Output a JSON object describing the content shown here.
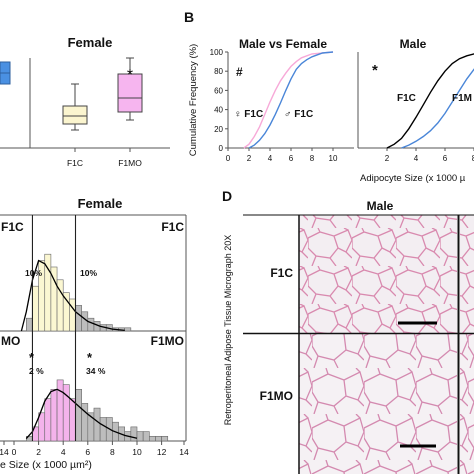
{
  "chart_data": [
    {
      "panel": "",
      "type": "box",
      "title": "Female",
      "categories": [
        "F1C",
        "F1MO"
      ],
      "boxes": [
        {
          "name": "F1C",
          "whisker_low": 0.9,
          "q1": 1.2,
          "median": 1.6,
          "q3": 2.1,
          "whisker_high": 3.2,
          "color": "#fbf5cf"
        },
        {
          "name": "F1MO",
          "whisker_low": 1.4,
          "q1": 1.8,
          "median": 2.5,
          "q3": 3.7,
          "whisker_high": 4.5,
          "color": "#f6b5ef"
        }
      ],
      "left_partial_box": {
        "low": 3.2,
        "high": 4.3,
        "color": "#4a90e2"
      },
      "annotations": [
        "*"
      ]
    },
    {
      "panel": "B",
      "type": "line",
      "ylabel": "Cumulative Frequency (%)",
      "xlabel": "Adipocyte Size (x 1000 µ",
      "subplots": [
        {
          "title": "Male vs Female",
          "marker": "#",
          "xlim": [
            0,
            12
          ],
          "ylim": [
            0,
            100
          ],
          "xticks": [
            "0",
            "2",
            "4",
            "6",
            "8",
            "10"
          ],
          "yticks": [
            "0",
            "20",
            "40",
            "60",
            "80",
            "100"
          ],
          "series_labels": [
            "♀ F1C",
            "♂ F1C"
          ],
          "series": [
            {
              "color": "#f7a9d8",
              "x": [
                1.5,
                2.0,
                2.5,
                3.0,
                3.5,
                4.0,
                4.5,
                5.0,
                5.5,
                6.0,
                6.5,
                7.0,
                8.0,
                9.0,
                10.0
              ],
              "y": [
                0,
                4,
                12,
                22,
                35,
                48,
                60,
                70,
                78,
                85,
                90,
                94,
                98,
                99,
                100
              ]
            },
            {
              "color": "#4a86d8",
              "x": [
                2.0,
                2.5,
                3.0,
                3.5,
                4.0,
                4.5,
                5.0,
                5.5,
                6.0,
                6.5,
                7.0,
                7.5,
                8.0,
                9.0,
                10.0
              ],
              "y": [
                0,
                3,
                8,
                15,
                24,
                35,
                47,
                60,
                72,
                82,
                88,
                92,
                95,
                99,
                100
              ]
            }
          ]
        },
        {
          "title": "Male",
          "marker": "*",
          "xlim": [
            0,
            10
          ],
          "ylim": [
            0,
            100
          ],
          "xticks": [
            "2",
            "4",
            "6",
            "8"
          ],
          "series_labels": [
            "F1C",
            "F1M"
          ],
          "series": [
            {
              "color": "#000000",
              "x": [
                2.0,
                2.5,
                3.0,
                3.5,
                4.0,
                4.5,
                5.0,
                5.5,
                6.0,
                6.5,
                7.0,
                7.5,
                8.0,
                9.0
              ],
              "y": [
                0,
                4,
                10,
                20,
                32,
                45,
                58,
                70,
                80,
                88,
                93,
                96,
                98,
                100
              ]
            },
            {
              "color": "#4a86d8",
              "x": [
                3.0,
                3.5,
                4.0,
                4.5,
                5.0,
                5.5,
                6.0,
                6.5,
                7.0,
                7.5,
                8.0,
                8.5,
                9.0
              ],
              "y": [
                0,
                3,
                7,
                12,
                18,
                26,
                36,
                48,
                60,
                72,
                82,
                90,
                95
              ]
            }
          ]
        }
      ]
    },
    {
      "panel": "",
      "type": "histogram",
      "title": "Female",
      "xlabel": "e Size (x 1000 µm²)",
      "xticks": [
        "14",
        "0",
        "2",
        "4",
        "6",
        "8",
        "10",
        "12",
        "14"
      ],
      "thresholds": [
        1.5,
        5.0
      ],
      "subplots": [
        {
          "group": "F1C",
          "row_label": "F1C",
          "right_label": "F1C",
          "annotations": [
            "10%",
            "10%"
          ],
          "bin_start": 1.0,
          "bin_width": 0.5,
          "values": [
            4,
            14,
            22,
            24,
            20,
            16,
            12,
            10,
            8,
            6,
            4,
            3,
            2,
            2,
            1,
            1,
            1
          ],
          "fill_inside": "#fbf7d2",
          "fill_outside": "#bdbdbd",
          "curve": {
            "x": [
              0.6,
              1.0,
              1.5,
              2.0,
              2.5,
              3.0,
              3.5,
              4.0,
              5.0,
              6.0,
              7.0,
              8.0,
              9.0
            ],
            "y": [
              0,
              6,
              16,
              22,
              21,
              18,
              14,
              11,
              6,
              3,
              1.5,
              0.6,
              0.2
            ]
          }
        },
        {
          "group": "F1MO",
          "row_label": "MO",
          "right_label": "F1MO",
          "annotations": [
            "*",
            "2 %",
            "*",
            "34 %"
          ],
          "bin_start": 1.0,
          "bin_width": 0.5,
          "values": [
            1,
            3,
            6,
            9,
            11,
            13,
            12,
            9,
            11,
            8,
            6,
            7,
            5,
            5,
            4,
            3,
            2,
            3,
            2,
            2,
            1,
            1,
            1
          ],
          "fill_inside": "#f4b3eb",
          "fill_outside": "#bdbdbd",
          "curve": {
            "x": [
              1.0,
              1.5,
              2.0,
              2.5,
              3.0,
              3.5,
              4.0,
              4.5,
              5.0,
              6.0,
              7.0,
              8.0,
              9.0,
              10.0
            ],
            "y": [
              0.5,
              2,
              5,
              8.5,
              10.5,
              11,
              10.3,
              9.2,
              8,
              5.7,
              3.7,
              2.2,
              1.2,
              0.6
            ]
          }
        }
      ]
    },
    {
      "panel": "D",
      "type": "image-grid",
      "title": "Male",
      "ylabel": "Retroperitoneal Adipose Tissue Micrograph 20X",
      "rows": [
        "F1C",
        "F1MO"
      ]
    }
  ]
}
